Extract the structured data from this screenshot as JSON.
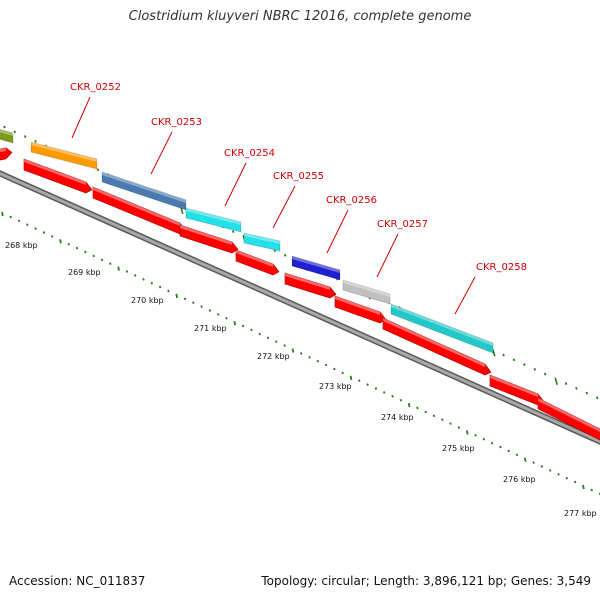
{
  "title": "Clostridium kluyveri NBRC 12016, complete genome",
  "footer": {
    "accession": "Accession: NC_011837",
    "summary": "Topology: circular; Length: 3,896,121 bp; Genes: 3,549"
  },
  "colors": {
    "backbone": "#8c8c8c",
    "cds_strand": "#ff0000",
    "tick": "#2a7a1a",
    "gene_label": "#cc0000"
  },
  "genes": [
    {
      "name": "",
      "color": "#7a9a20"
    },
    {
      "name": "CKR_0252",
      "color": "#ff9900"
    },
    {
      "name": "CKR_0253",
      "color": "#4a7ab0"
    },
    {
      "name": "CKR_0254",
      "color": "#22e0e8"
    },
    {
      "name": "CKR_0255",
      "color": "#22e0e8"
    },
    {
      "name": "CKR_0256",
      "color": "#2020d0"
    },
    {
      "name": "CKR_0257",
      "color": "#c0c0c0"
    },
    {
      "name": "CKR_0258",
      "color": "#22c8c8"
    }
  ],
  "kbp_labels": [
    "268 kbp",
    "269 kbp",
    "270 kbp",
    "271 kbp",
    "272 kbp",
    "273 kbp",
    "274 kbp",
    "275 kbp",
    "276 kbp",
    "277 kbp"
  ]
}
